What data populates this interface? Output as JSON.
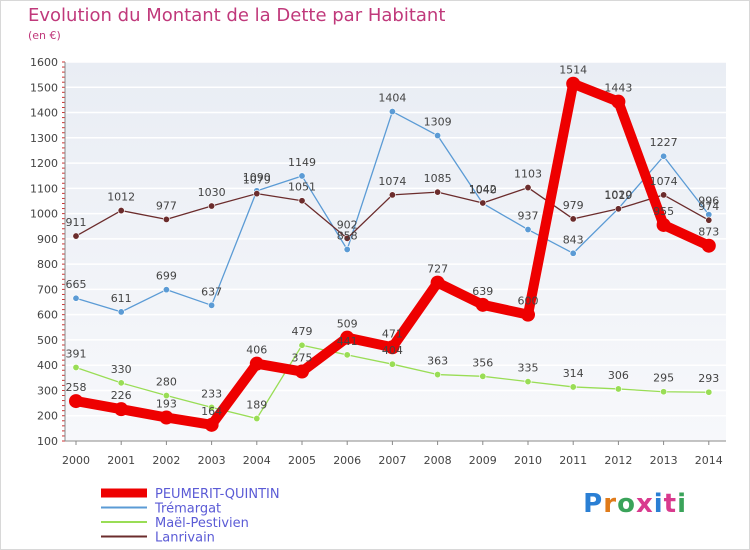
{
  "chart_data": {
    "type": "line",
    "title": "Evolution du Montant de la Dette par Habitant",
    "subtitle": "(en €)",
    "x": [
      "2000",
      "2001",
      "2002",
      "2003",
      "2004",
      "2005",
      "2006",
      "2007",
      "2008",
      "2009",
      "2010",
      "2011",
      "2012",
      "2013",
      "2014"
    ],
    "ylim": [
      100,
      1600
    ],
    "yticks": [
      100,
      200,
      300,
      400,
      500,
      600,
      700,
      800,
      900,
      1000,
      1100,
      1200,
      1300,
      1400,
      1500,
      1600
    ],
    "grid": "horizontal",
    "legend_position": "bottom-left",
    "series": [
      {
        "name": "PEUMERIT-QUINTIN",
        "color": "#ee0000",
        "values": [
          258,
          226,
          193,
          164,
          406,
          375,
          509,
          471,
          727,
          639,
          600,
          1514,
          1443,
          955,
          873
        ]
      },
      {
        "name": "Trémargat",
        "color": "#5b9bd5",
        "values": [
          665,
          611,
          699,
          637,
          1090,
          1149,
          858,
          1404,
          1309,
          1040,
          937,
          843,
          1020,
          1227,
          996
        ]
      },
      {
        "name": "Maël-Pestivien",
        "color": "#99dd55",
        "values": [
          391,
          330,
          280,
          233,
          189,
          479,
          441,
          404,
          363,
          356,
          335,
          314,
          306,
          295,
          293
        ]
      },
      {
        "name": "Lanrivain",
        "color": "#6b2c2c",
        "values": [
          911,
          1012,
          977,
          1030,
          1079,
          1051,
          902,
          1074,
          1085,
          1042,
          1103,
          979,
          1019,
          1074,
          974
        ]
      }
    ]
  },
  "logo": {
    "text": "Proxiti"
  }
}
